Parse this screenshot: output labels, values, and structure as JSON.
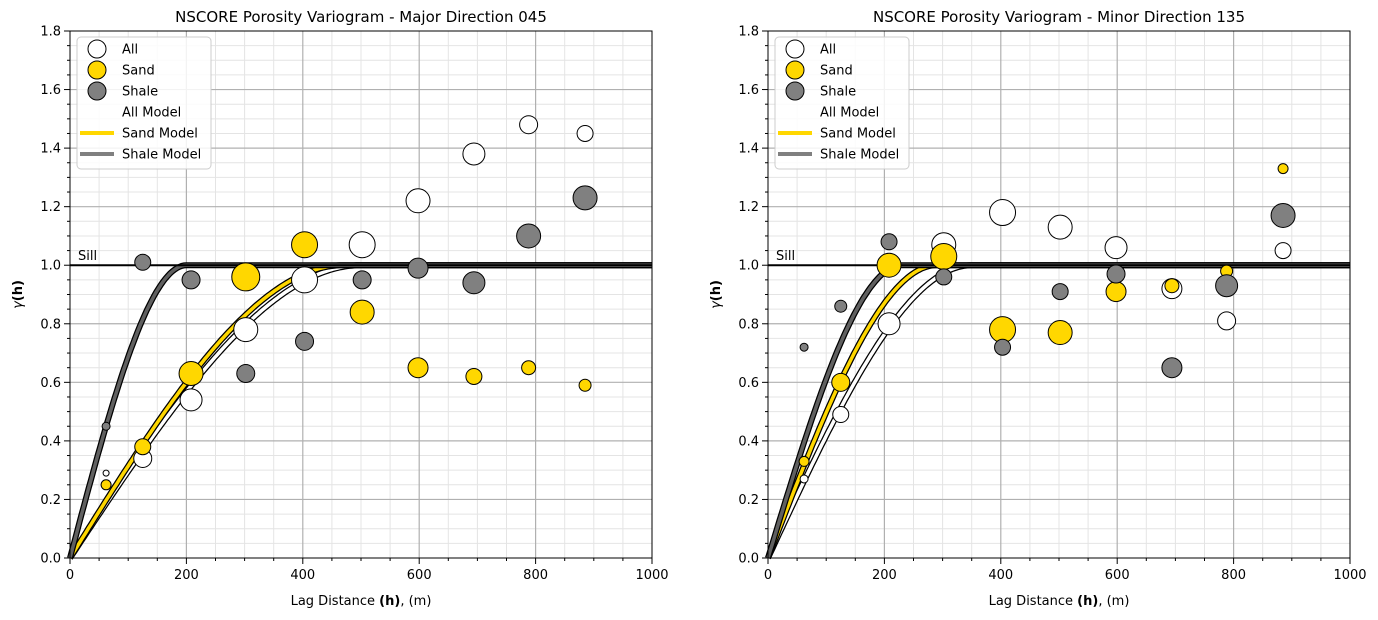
{
  "chart_data": [
    {
      "type": "scatter",
      "title": "NSCORE Porosity Variogram - Major Direction 045",
      "xlabel": "Lag Distance ",
      "xlabel_bold": "(h)",
      "xlabel_suffix": ", (m)",
      "ylabel_gamma": "γ",
      "ylabel_bold": "(h)",
      "xlim": [
        0,
        1000
      ],
      "ylim": [
        0,
        1.8
      ],
      "xticks": [
        "0",
        "200",
        "400",
        "600",
        "800",
        "1000"
      ],
      "yticks": [
        "0.0",
        "0.2",
        "0.4",
        "0.6",
        "0.8",
        "1.0",
        "1.2",
        "1.4",
        "1.6",
        "1.8"
      ],
      "grid": true,
      "legend_position": "top-left",
      "sill_label": "Sill",
      "sill": 1.0,
      "legend": [
        "All",
        "Sand",
        "Shale",
        "All Model",
        "Sand Model",
        "Shale Model"
      ],
      "series": [
        {
          "name": "All",
          "kind": "points",
          "color": "#ffffff",
          "x": [
            62,
            125,
            208,
            302,
            403,
            502,
            598,
            694,
            788,
            885
          ],
          "y": [
            0.29,
            0.34,
            0.54,
            0.78,
            0.95,
            1.07,
            1.22,
            1.38,
            1.48,
            1.45
          ],
          "size": [
            3,
            9,
            11,
            12,
            13,
            13,
            12,
            11,
            9,
            8
          ]
        },
        {
          "name": "Sand",
          "kind": "points",
          "color": "#ffd700",
          "x": [
            62,
            125,
            208,
            302,
            403,
            502,
            598,
            694,
            788,
            885
          ],
          "y": [
            0.25,
            0.38,
            0.63,
            0.96,
            1.07,
            0.84,
            0.65,
            0.62,
            0.65,
            0.59
          ],
          "size": [
            5,
            8,
            12,
            14,
            13,
            12,
            10,
            8,
            7,
            6
          ]
        },
        {
          "name": "Shale",
          "kind": "points",
          "color": "#808080",
          "x": [
            62,
            125,
            208,
            302,
            403,
            502,
            598,
            694,
            788,
            885
          ],
          "y": [
            0.45,
            1.01,
            0.95,
            0.63,
            0.74,
            0.95,
            0.99,
            0.94,
            1.1,
            1.23
          ],
          "size": [
            4,
            8,
            9,
            9,
            9,
            9,
            10,
            11,
            12,
            12
          ]
        },
        {
          "name": "All Model",
          "kind": "model",
          "color": "#ffffff",
          "range": 500,
          "nugget": 0.0
        },
        {
          "name": "Sand Model",
          "kind": "model",
          "color": "#ffd700",
          "range": 470,
          "nugget": 0.0
        },
        {
          "name": "Shale Model",
          "kind": "model",
          "color": "#606060",
          "range": 200,
          "nugget": 0.0
        }
      ]
    },
    {
      "type": "scatter",
      "title": "NSCORE Porosity Variogram - Minor Direction 135",
      "xlabel": "Lag Distance ",
      "xlabel_bold": "(h)",
      "xlabel_suffix": ", (m)",
      "ylabel_gamma": "γ",
      "ylabel_bold": "(h)",
      "xlim": [
        0,
        1000
      ],
      "ylim": [
        0,
        1.8
      ],
      "xticks": [
        "0",
        "200",
        "400",
        "600",
        "800",
        "1000"
      ],
      "yticks": [
        "0.0",
        "0.2",
        "0.4",
        "0.6",
        "0.8",
        "1.0",
        "1.2",
        "1.4",
        "1.6",
        "1.8"
      ],
      "grid": true,
      "legend_position": "top-left",
      "sill_label": "Sill",
      "sill": 1.0,
      "legend": [
        "All",
        "Sand",
        "Shale",
        "All Model",
        "Sand Model",
        "Shale Model"
      ],
      "series": [
        {
          "name": "All",
          "kind": "points",
          "color": "#ffffff",
          "x": [
            62,
            125,
            208,
            302,
            403,
            502,
            598,
            694,
            788,
            885
          ],
          "y": [
            0.27,
            0.49,
            0.8,
            1.07,
            1.18,
            1.13,
            1.06,
            0.92,
            0.81,
            1.05
          ],
          "size": [
            4,
            8,
            11,
            12,
            13,
            12,
            11,
            10,
            9,
            8
          ]
        },
        {
          "name": "Sand",
          "kind": "points",
          "color": "#ffd700",
          "x": [
            62,
            125,
            208,
            302,
            403,
            502,
            598,
            694,
            788,
            885
          ],
          "y": [
            0.33,
            0.6,
            1.0,
            1.03,
            0.78,
            0.77,
            0.91,
            0.93,
            0.98,
            1.33
          ],
          "size": [
            5,
            9,
            12,
            13,
            13,
            12,
            10,
            7,
            6,
            5
          ]
        },
        {
          "name": "Shale",
          "kind": "points",
          "color": "#808080",
          "x": [
            62,
            125,
            208,
            302,
            403,
            502,
            598,
            694,
            788,
            885
          ],
          "y": [
            0.72,
            0.86,
            1.08,
            0.96,
            0.72,
            0.91,
            0.97,
            0.65,
            0.93,
            1.17
          ],
          "size": [
            4,
            6,
            8,
            8,
            8,
            8,
            9,
            10,
            11,
            12
          ]
        },
        {
          "name": "All Model",
          "kind": "model",
          "color": "#ffffff",
          "range": 350,
          "nugget": 0.0
        },
        {
          "name": "Sand Model",
          "kind": "model",
          "color": "#ffd700",
          "range": 290,
          "nugget": 0.0
        },
        {
          "name": "Shale Model",
          "kind": "model",
          "color": "#606060",
          "range": 230,
          "nugget": 0.0
        }
      ]
    }
  ]
}
